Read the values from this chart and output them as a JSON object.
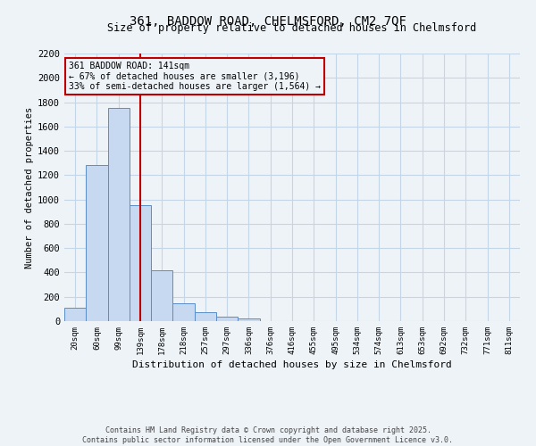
{
  "title_line1": "361, BADDOW ROAD, CHELMSFORD, CM2 7QF",
  "title_line2": "Size of property relative to detached houses in Chelmsford",
  "xlabel": "Distribution of detached houses by size in Chelmsford",
  "ylabel": "Number of detached properties",
  "categories": [
    "20sqm",
    "60sqm",
    "99sqm",
    "139sqm",
    "178sqm",
    "218sqm",
    "257sqm",
    "297sqm",
    "336sqm",
    "376sqm",
    "416sqm",
    "455sqm",
    "495sqm",
    "534sqm",
    "574sqm",
    "613sqm",
    "653sqm",
    "692sqm",
    "732sqm",
    "771sqm",
    "811sqm"
  ],
  "values": [
    110,
    1280,
    1750,
    950,
    420,
    150,
    75,
    40,
    20,
    0,
    0,
    0,
    0,
    0,
    0,
    0,
    0,
    0,
    0,
    0,
    0
  ],
  "bar_color": "#c6d9f0",
  "bar_edge_color": "#5a8dc8",
  "vline_x": 3,
  "vline_color": "#c00000",
  "annotation_text": "361 BADDOW ROAD: 141sqm\n← 67% of detached houses are smaller (3,196)\n33% of semi-detached houses are larger (1,564) →",
  "annotation_box_color": "#c00000",
  "ylim": [
    0,
    2200
  ],
  "yticks": [
    0,
    200,
    400,
    600,
    800,
    1000,
    1200,
    1400,
    1600,
    1800,
    2000,
    2200
  ],
  "grid_color": "#c5d5e8",
  "background_color": "#eef3f8",
  "footer_line1": "Contains HM Land Registry data © Crown copyright and database right 2025.",
  "footer_line2": "Contains public sector information licensed under the Open Government Licence v3.0."
}
